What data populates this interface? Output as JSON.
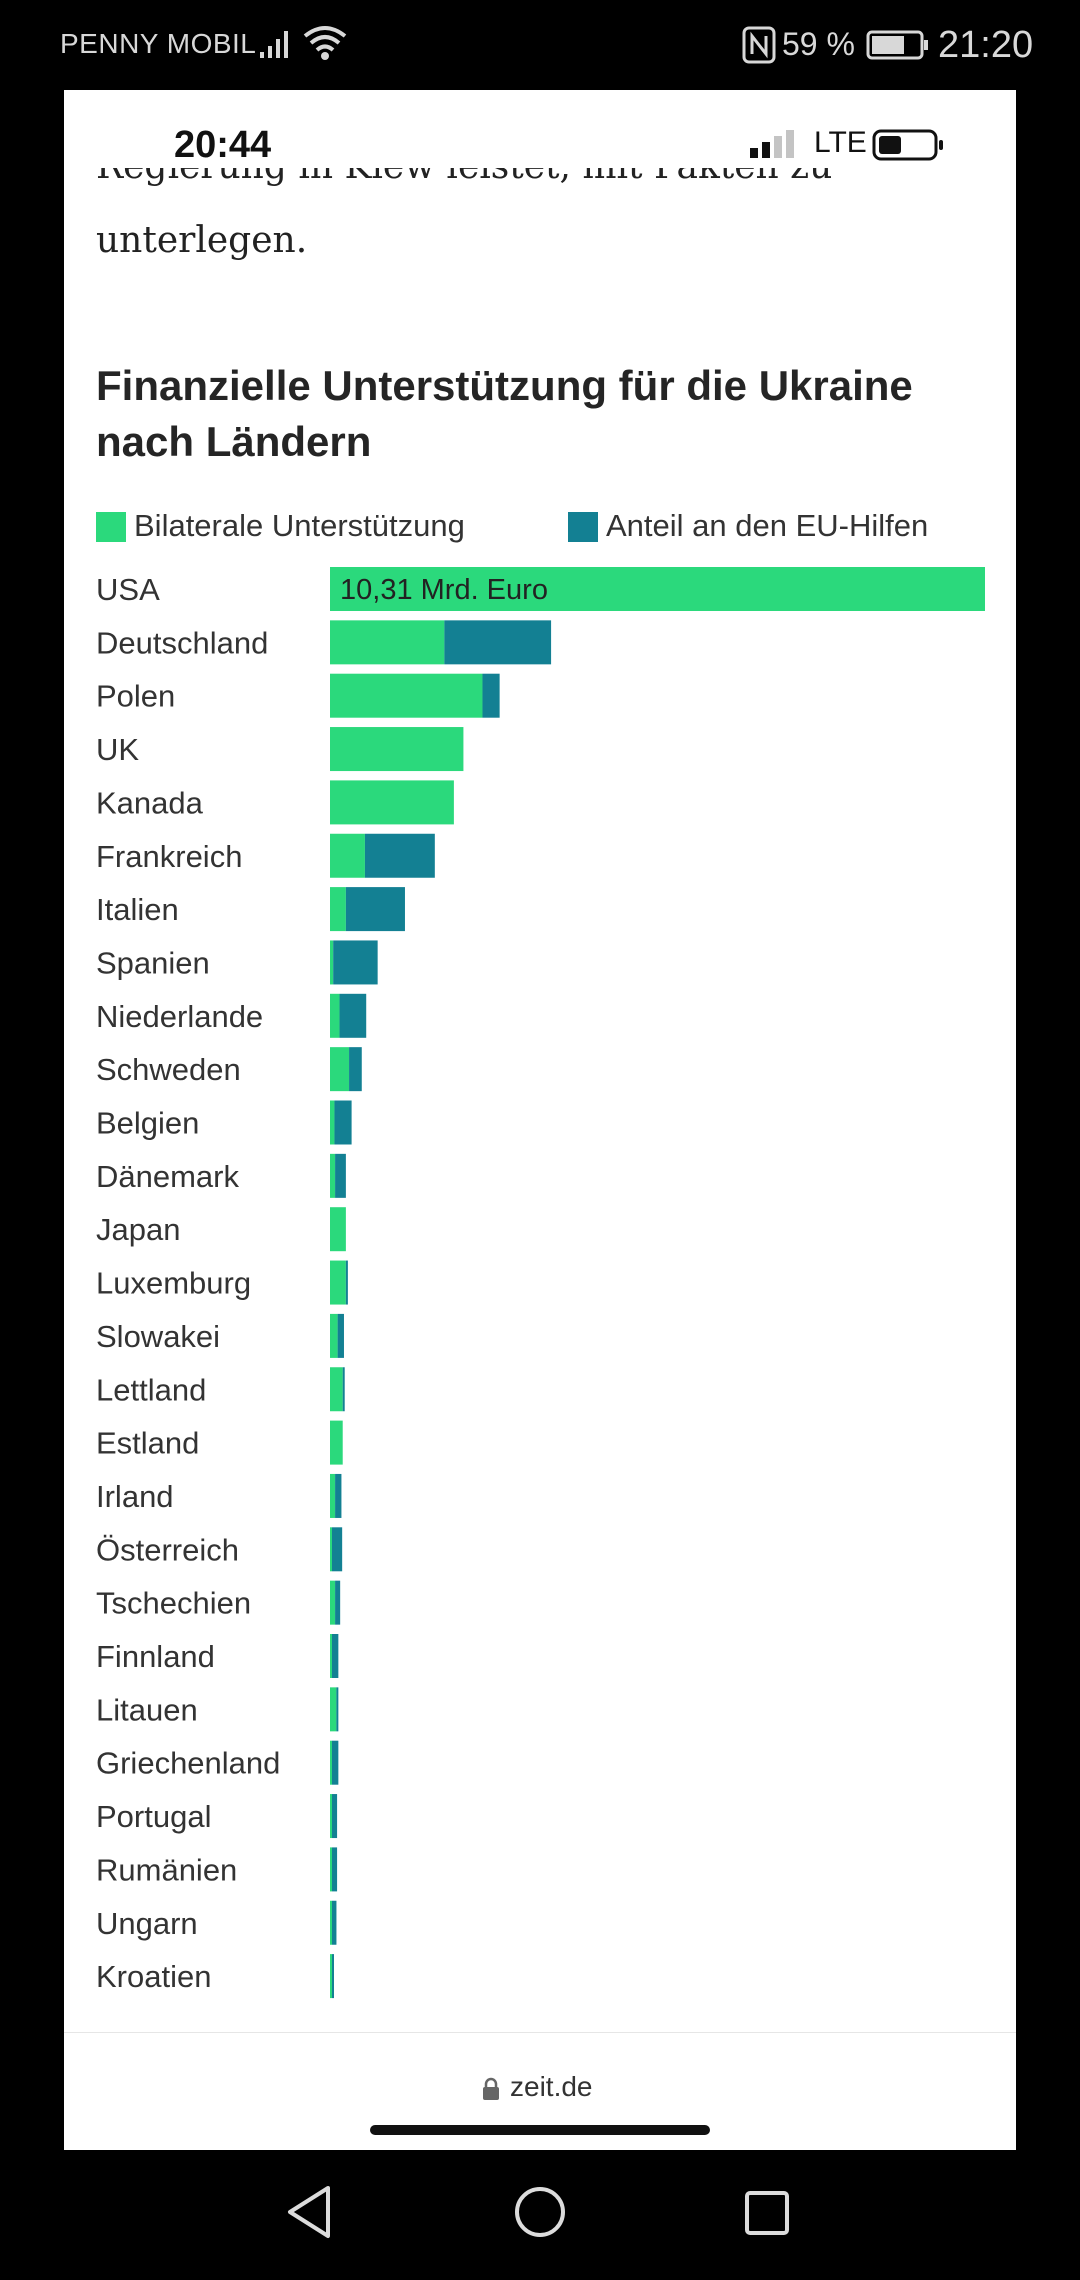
{
  "outer_status": {
    "carrier": "PENNY MOBIL",
    "battery": "59 %",
    "time": "21:20"
  },
  "inner_status": {
    "time": "20:44",
    "network": "LTE"
  },
  "article": {
    "cut_line": "Regierung in Kiew leistet, mit Fakten zu",
    "text_line": "unterlegen."
  },
  "footer": {
    "url": "zeit.de"
  },
  "colors": {
    "bilateral": "#2bd97c",
    "eu": "#138093"
  },
  "chart_data": {
    "type": "bar",
    "orientation": "horizontal",
    "stacked": true,
    "title": "Finanzielle Unterstützung für die Ukraine nach Ländern",
    "categories": [
      "USA",
      "Deutschland",
      "Polen",
      "UK",
      "Kanada",
      "Frankreich",
      "Italien",
      "Spanien",
      "Niederlande",
      "Schweden",
      "Belgien",
      "Dänemark",
      "Japan",
      "Luxemburg",
      "Slowakei",
      "Lettland",
      "Estland",
      "Irland",
      "Österreich",
      "Tschechien",
      "Finnland",
      "Litauen",
      "Griechenland",
      "Portugal",
      "Rumänien",
      "Ungarn",
      "Kroatien"
    ],
    "series": [
      {
        "name": "Bilaterale Unterstützung",
        "color": "#2bd97c",
        "values": [
          10.31,
          1.8,
          2.4,
          2.1,
          1.95,
          0.55,
          0.25,
          0.05,
          0.15,
          0.3,
          0.07,
          0.08,
          0.25,
          0.25,
          0.12,
          0.2,
          0.2,
          0.08,
          0.03,
          0.08,
          0.02,
          0.1,
          0.01,
          0.01,
          0.01,
          0.01,
          0.02
        ]
      },
      {
        "name": "Anteil an den EU-Hilfen",
        "color": "#138093",
        "values": [
          0,
          1.68,
          0.27,
          0,
          0,
          1.1,
          0.93,
          0.7,
          0.42,
          0.2,
          0.27,
          0.17,
          0,
          0.02,
          0.1,
          0.02,
          0,
          0.1,
          0.16,
          0.08,
          0.1,
          0.01,
          0.1,
          0.08,
          0.08,
          0.07,
          0.02
        ]
      }
    ],
    "data_labels": [
      {
        "category": "USA",
        "text": "10,31 Mrd. Euro"
      }
    ],
    "xlim": [
      0,
      10.31
    ],
    "legend_position": "top",
    "grid": false
  }
}
